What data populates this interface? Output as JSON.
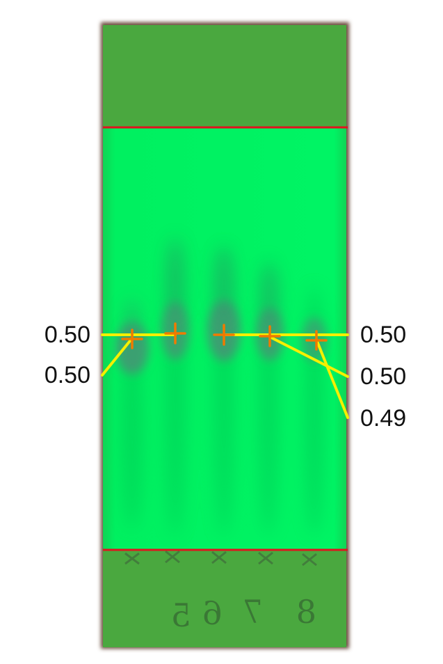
{
  "colors": {
    "plate_green": "#00f060",
    "margin_green": "#4aa83f",
    "boundary_red": "#e0141e",
    "leader_yellow": "#f5f000",
    "marker_orange": "#f07a00",
    "spot": "#4f8a78"
  },
  "rf_values": {
    "left": [
      "0.50",
      "0.50"
    ],
    "right": [
      "0.50",
      "0.50",
      "0.49"
    ]
  },
  "lane_marks": [
    "5",
    "6",
    "7",
    "8"
  ]
}
